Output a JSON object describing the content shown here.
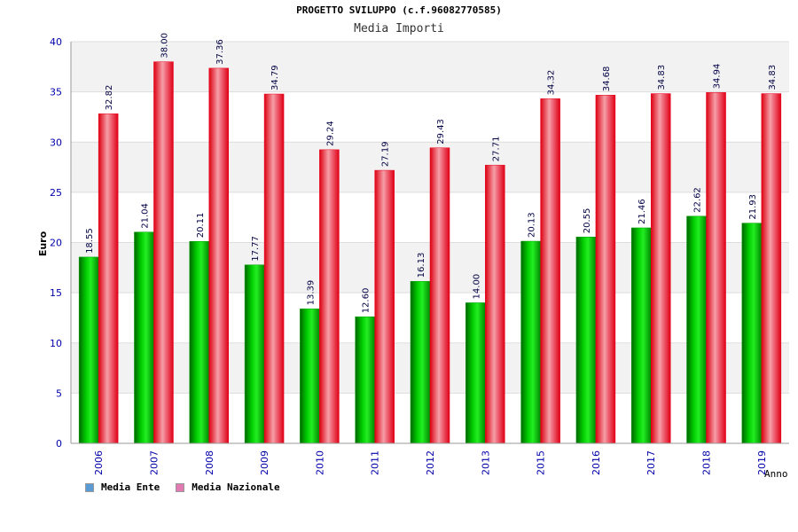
{
  "header": {
    "title": "PROGETTO SVILUPPO (c.f.96082770585)",
    "subtitle": "Media Importi"
  },
  "chart_data": {
    "type": "bar",
    "title": "Media Importi",
    "xlabel": "Anno",
    "ylabel": "Euro",
    "ylim": [
      0,
      40
    ],
    "yticks": [
      "0",
      "5",
      "10",
      "15",
      "20",
      "25",
      "30",
      "35",
      "40"
    ],
    "categories": [
      "2006",
      "2007",
      "2008",
      "2009",
      "2010",
      "2011",
      "2012",
      "2013",
      "2015",
      "2016",
      "2017",
      "2018",
      "2019"
    ],
    "series": [
      {
        "name": "Media Ente",
        "color": "#00a000",
        "values": [
          18.55,
          21.04,
          20.11,
          17.77,
          13.39,
          12.6,
          16.13,
          14.0,
          20.13,
          20.55,
          21.46,
          22.62,
          21.93
        ],
        "labels": [
          "18.55",
          "21.04",
          "20.11",
          "17.77",
          "13.39",
          "12.60",
          "16.13",
          "14.00",
          "20.13",
          "20.55",
          "21.46",
          "22.62",
          "21.93"
        ]
      },
      {
        "name": "Media Nazionale",
        "color": "#e8001c",
        "values": [
          32.82,
          38.0,
          37.36,
          34.79,
          29.24,
          27.19,
          29.43,
          27.71,
          34.32,
          34.68,
          34.83,
          34.94,
          34.83
        ],
        "labels": [
          "32.82",
          "38.00",
          "37.36",
          "34.79",
          "29.24",
          "27.19",
          "29.43",
          "27.71",
          "34.32",
          "34.68",
          "34.83",
          "34.94",
          "34.83"
        ]
      }
    ],
    "grid": true,
    "legend": "bottom-left"
  },
  "legend": {
    "items": [
      {
        "label": "Media Ente",
        "color": "#5b9bd5"
      },
      {
        "label": "Media Nazionale",
        "color": "#e07ab0"
      }
    ]
  }
}
